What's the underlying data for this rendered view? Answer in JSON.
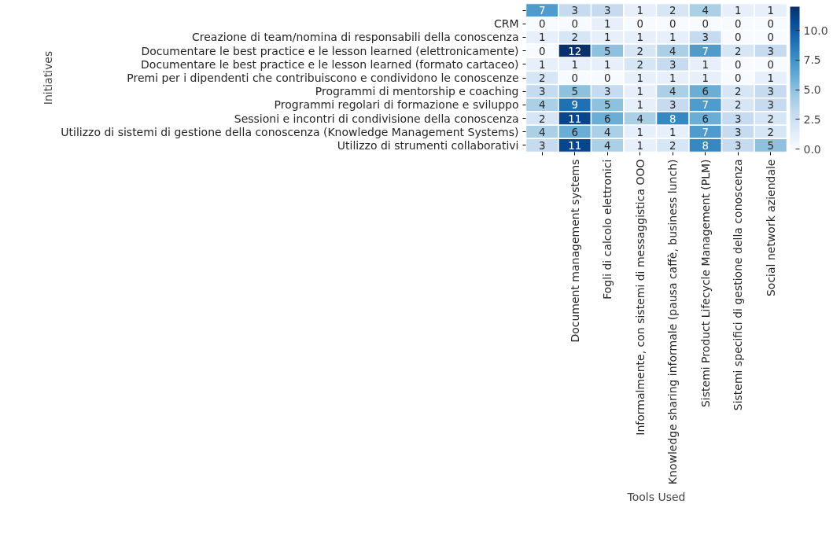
{
  "chart_data": {
    "type": "heatmap",
    "xlabel": "Tools Used",
    "ylabel": "Initiatives",
    "categories": [
      null,
      "Document management systems",
      "Fogli di calcolo elettronici",
      "Informalmente, con sistemi di messaggistica OOO",
      "Knowledge sharing informale (pausa caffè, business lunch)",
      "Sistemi Product Lifecycle Management (PLM)",
      "Sistemi specifici di gestione della conoscenza",
      "Social network aziendale"
    ],
    "y_categories": [
      null,
      "CRM",
      "Creazione di team/nomina di responsabili della conoscenza",
      "Documentare le best practice e le lesson learned (elettronicamente)",
      "Documentare le best practice e le lesson learned (formato cartaceo)",
      "Premi per i dipendenti che contribuiscono e condividono le conoscenze",
      "Programmi di mentorship e coaching",
      "Programmi regolari di formazione e sviluppo",
      "Sessioni e incontri di condivisione della conoscenza",
      "Utilizzo di sistemi di gestione della conoscenza (Knowledge Management Systems)",
      "Utilizzo di strumenti collaborativi"
    ],
    "cells": [
      [
        7,
        3,
        3,
        1,
        2,
        4,
        1,
        1
      ],
      [
        0,
        0,
        1,
        0,
        0,
        0,
        0,
        0
      ],
      [
        1,
        2,
        1,
        1,
        1,
        3,
        0,
        0
      ],
      [
        0,
        12,
        5,
        2,
        4,
        7,
        2,
        3
      ],
      [
        1,
        1,
        1,
        2,
        3,
        1,
        0,
        0
      ],
      [
        2,
        0,
        0,
        1,
        1,
        1,
        0,
        1
      ],
      [
        3,
        5,
        3,
        1,
        4,
        6,
        2,
        3
      ],
      [
        4,
        9,
        5,
        1,
        3,
        7,
        2,
        3
      ],
      [
        2,
        11,
        6,
        4,
        8,
        6,
        3,
        2
      ],
      [
        4,
        6,
        4,
        1,
        1,
        7,
        3,
        2
      ],
      [
        3,
        11,
        4,
        1,
        2,
        8,
        3,
        5
      ]
    ],
    "clim": [
      0,
      12
    ],
    "cticks": [
      {
        "value": 0,
        "label": "0.0"
      },
      {
        "value": 2.5,
        "label": "2.5"
      },
      {
        "value": 5,
        "label": "5.0"
      },
      {
        "value": 7.5,
        "label": "7.5"
      },
      {
        "value": 10,
        "label": "10.0"
      }
    ],
    "data_labels": true
  }
}
